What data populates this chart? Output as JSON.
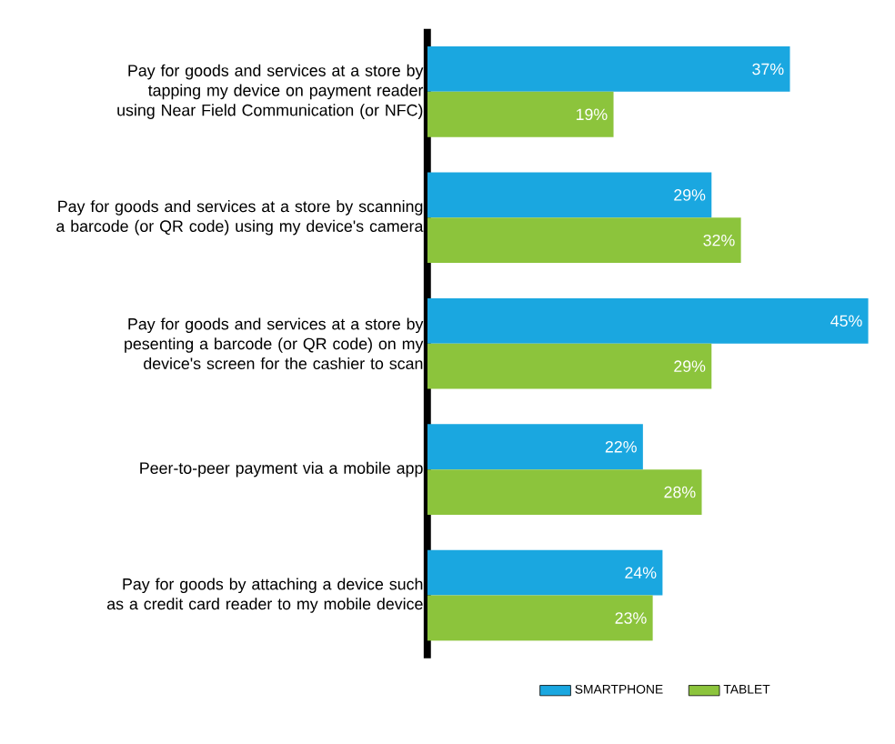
{
  "chart_data": {
    "type": "bar",
    "orientation": "horizontal",
    "categories": [
      "Pay for goods and services at a store by tapping my device on payment reader using Near Field Communication (or NFC)",
      "Pay for goods and services at a store by scanning a barcode (or QR code) using my device's camera",
      "Pay for goods and services at a store by pesenting a barcode (or QR code) on my device's screen for the cashier to scan",
      "Peer-to-peer payment via a mobile app",
      "Pay for goods by attaching a device such as a credit card reader to my mobile device"
    ],
    "series": [
      {
        "name": "SMARTPHONE",
        "color": "#1aa7e0",
        "values": [
          37,
          29,
          45,
          22,
          24
        ],
        "value_labels": [
          "37%",
          "29%",
          "45%",
          "22%",
          "24%"
        ]
      },
      {
        "name": "TABLET",
        "color": "#8cc43c",
        "values": [
          19,
          32,
          29,
          28,
          23
        ],
        "value_labels": [
          "19%",
          "32%",
          "29%",
          "28%",
          "23%"
        ]
      }
    ],
    "legend": "bottom"
  }
}
